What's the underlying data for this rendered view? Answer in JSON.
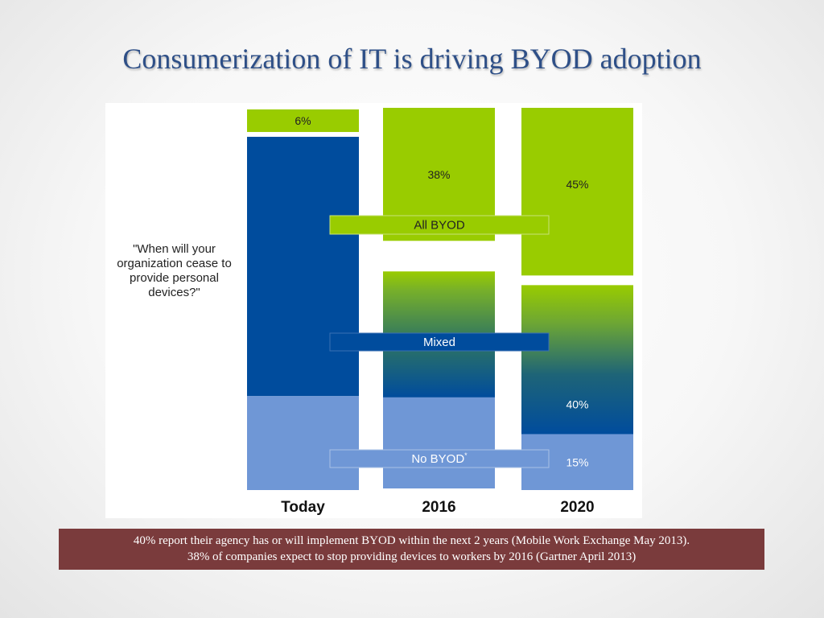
{
  "title": "Consumerization of IT is driving BYOD adoption",
  "chart_data": {
    "type": "bar",
    "stacked": true,
    "question": "\"When will your organization cease to provide personal devices?\"",
    "categories": [
      "Today",
      "2016",
      "2020"
    ],
    "series": [
      {
        "name": "No BYOD*",
        "values": [
          25,
          26,
          15
        ],
        "labels": [
          "",
          "",
          "15%"
        ],
        "color": "#6f97d6"
      },
      {
        "name": "Mixed",
        "values": [
          69,
          36,
          40
        ],
        "labels": [
          "",
          "",
          "40%"
        ],
        "color": "#004c9d"
      },
      {
        "name": "All BYOD",
        "values": [
          6,
          38,
          45
        ],
        "labels": [
          "6%",
          "38%",
          "45%"
        ],
        "color": "#99cc00"
      }
    ],
    "legend_labels": {
      "all_byod": "All BYOD",
      "mixed": "Mixed",
      "no_byod": "No BYOD",
      "no_byod_mark": "*"
    }
  },
  "footer": {
    "line1": "40% report their agency has or will implement BYOD within the next 2 years (Mobile Work Exchange May 2013).",
    "line2": "38% of companies expect to stop providing devices to workers by 2016 (Gartner April 2013)"
  }
}
